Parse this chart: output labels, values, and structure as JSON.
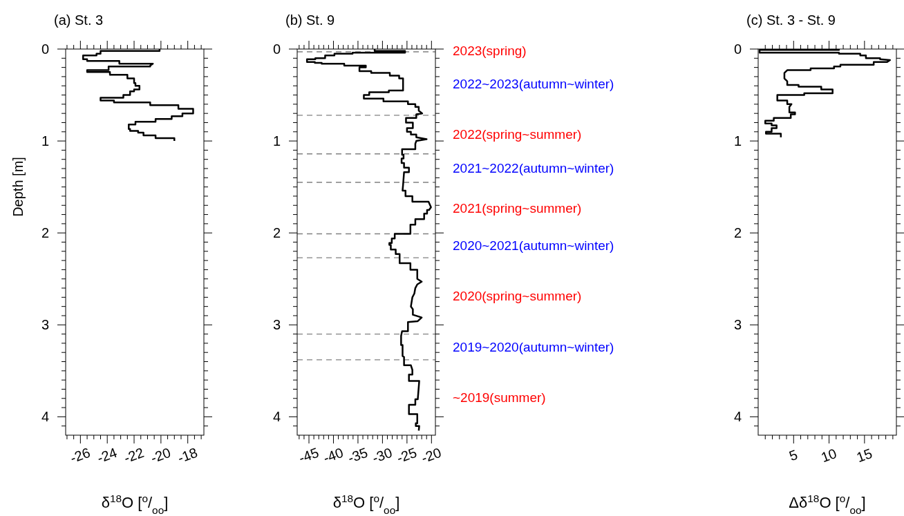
{
  "chart_data": [
    {
      "type": "line",
      "title": "(a) St. 3",
      "xlabel": "δ$^{18}$O [$^{o}$/$_{oo}$]",
      "ylabel": "Depth [m]",
      "xlim": [
        -27.1,
        -16.8
      ],
      "ylim": [
        4.2,
        0
      ],
      "xticks": [
        {
          "value": -27,
          "label": null
        },
        {
          "value": -26.5,
          "label": null
        },
        -26,
        {
          "value": -25.5,
          "label": null
        },
        {
          "value": -25,
          "label": null
        },
        {
          "value": -24.5,
          "label": null
        },
        -24,
        {
          "value": -23.5,
          "label": null
        },
        {
          "value": -23,
          "label": null
        },
        {
          "value": -22.5,
          "label": null
        },
        -22,
        {
          "value": -21.5,
          "label": null
        },
        {
          "value": -21,
          "label": null
        },
        {
          "value": -20.5,
          "label": null
        },
        -20,
        {
          "value": -19.5,
          "label": null
        },
        {
          "value": -19,
          "label": null
        },
        {
          "value": -18.5,
          "label": null
        },
        -18,
        {
          "value": -17.5,
          "label": null
        },
        {
          "value": -17,
          "label": null
        }
      ],
      "yticks": [
        0,
        {
          "value": 0.1,
          "label": null
        },
        {
          "value": 0.2,
          "label": null
        },
        {
          "value": 0.3,
          "label": null
        },
        {
          "value": 0.4,
          "label": null
        },
        {
          "value": 0.5,
          "label": null
        },
        {
          "value": 0.6,
          "label": null
        },
        {
          "value": 0.7,
          "label": null
        },
        {
          "value": 0.8,
          "label": null
        },
        {
          "value": 0.9,
          "label": null
        },
        1,
        {
          "value": 1.1,
          "label": null
        },
        {
          "value": 1.2,
          "label": null
        },
        {
          "value": 1.3,
          "label": null
        },
        {
          "value": 1.4,
          "label": null
        },
        {
          "value": 1.5,
          "label": null
        },
        {
          "value": 1.6,
          "label": null
        },
        {
          "value": 1.7,
          "label": null
        },
        {
          "value": 1.8,
          "label": null
        },
        {
          "value": 1.9,
          "label": null
        },
        2,
        {
          "value": 2.1,
          "label": null
        },
        {
          "value": 2.2,
          "label": null
        },
        {
          "value": 2.3,
          "label": null
        },
        {
          "value": 2.4,
          "label": null
        },
        {
          "value": 2.5,
          "label": null
        },
        {
          "value": 2.6,
          "label": null
        },
        {
          "value": 2.7,
          "label": null
        },
        {
          "value": 2.8,
          "label": null
        },
        {
          "value": 2.9,
          "label": null
        },
        3,
        {
          "value": 3.1,
          "label": null
        },
        {
          "value": 3.2,
          "label": null
        },
        {
          "value": 3.3,
          "label": null
        },
        {
          "value": 3.4,
          "label": null
        },
        {
          "value": 3.5,
          "label": null
        },
        {
          "value": 3.6,
          "label": null
        },
        {
          "value": 3.7,
          "label": null
        },
        {
          "value": 3.8,
          "label": null
        },
        {
          "value": 3.9,
          "label": null
        },
        4,
        {
          "value": 4.1,
          "label": null
        }
      ],
      "series": [
        {
          "color": "#000000",
          "x": [
            -20.1,
            -20.1,
            -24.5,
            -24.5,
            -24.8,
            -24.8,
            -25.8,
            -25.8,
            -25.5,
            -25.5,
            -23.1,
            -23.1,
            -20.6,
            -20.8,
            -20.8,
            -23.9,
            -23.9,
            -25.5,
            -25.5,
            -23.8,
            -23.8,
            -22.5,
            -22.5,
            -22.0,
            -22.0,
            -21.9,
            -21.9,
            -21.6,
            -21.6,
            -22.0,
            -22.0,
            -22.3,
            -22.3,
            -22.8,
            -22.8,
            -24.5,
            -24.5,
            -23.5,
            -23.5,
            -20.8,
            -20.8,
            -18.7,
            -18.7,
            -17.6,
            -17.6,
            -18.4,
            -18.4,
            -19.2,
            -19.2,
            -20.4,
            -20.4,
            -21.9,
            -21.9,
            -22.4,
            -22.4,
            -22.3,
            -22.3,
            -21.7,
            -21.7,
            -21.3,
            -21.3,
            -20.4,
            -20.4,
            -19.0,
            -19.0
          ],
          "values": [
            0,
            0.02,
            0.02,
            0.05,
            0.05,
            0.07,
            0.07,
            0.11,
            0.11,
            0.13,
            0.13,
            0.16,
            0.16,
            0.18,
            0.19,
            0.19,
            0.23,
            0.23,
            0.25,
            0.25,
            0.28,
            0.28,
            0.32,
            0.32,
            0.37,
            0.37,
            0.4,
            0.4,
            0.44,
            0.44,
            0.46,
            0.46,
            0.5,
            0.5,
            0.53,
            0.53,
            0.56,
            0.56,
            0.58,
            0.58,
            0.61,
            0.61,
            0.65,
            0.65,
            0.7,
            0.7,
            0.73,
            0.73,
            0.76,
            0.76,
            0.79,
            0.79,
            0.82,
            0.82,
            0.87,
            0.87,
            0.89,
            0.89,
            0.91,
            0.91,
            0.94,
            0.94,
            0.97,
            0.97,
            1.0
          ]
        }
      ]
    },
    {
      "type": "line",
      "title": "(b) St. 9",
      "xlabel": "δ$^{18}$O [$^{o}$/$_{oo}$]",
      "xlim": [
        -47.4,
        -19.2
      ],
      "ylim": [
        4.2,
        0
      ],
      "xticks": [
        {
          "value": -47,
          "label": null
        },
        {
          "value": -46,
          "label": null
        },
        -45,
        {
          "value": -44,
          "label": null
        },
        {
          "value": -43,
          "label": null
        },
        {
          "value": -42,
          "label": null
        },
        {
          "value": -41,
          "label": null
        },
        -40,
        {
          "value": -39,
          "label": null
        },
        {
          "value": -38,
          "label": null
        },
        {
          "value": -37,
          "label": null
        },
        {
          "value": -36,
          "label": null
        },
        -35,
        {
          "value": -34,
          "label": null
        },
        {
          "value": -33,
          "label": null
        },
        {
          "value": -32,
          "label": null
        },
        {
          "value": -31,
          "label": null
        },
        -30,
        {
          "value": -29,
          "label": null
        },
        {
          "value": -28,
          "label": null
        },
        {
          "value": -27,
          "label": null
        },
        {
          "value": -26,
          "label": null
        },
        -25,
        {
          "value": -24,
          "label": null
        },
        {
          "value": -23,
          "label": null
        },
        {
          "value": -22,
          "label": null
        },
        {
          "value": -21,
          "label": null
        },
        -20
      ],
      "yticks": [
        0,
        {
          "value": 0.1,
          "label": null
        },
        {
          "value": 0.2,
          "label": null
        },
        {
          "value": 0.3,
          "label": null
        },
        {
          "value": 0.4,
          "label": null
        },
        {
          "value": 0.5,
          "label": null
        },
        {
          "value": 0.6,
          "label": null
        },
        {
          "value": 0.7,
          "label": null
        },
        {
          "value": 0.8,
          "label": null
        },
        {
          "value": 0.9,
          "label": null
        },
        1,
        {
          "value": 1.1,
          "label": null
        },
        {
          "value": 1.2,
          "label": null
        },
        {
          "value": 1.3,
          "label": null
        },
        {
          "value": 1.4,
          "label": null
        },
        {
          "value": 1.5,
          "label": null
        },
        {
          "value": 1.6,
          "label": null
        },
        {
          "value": 1.7,
          "label": null
        },
        {
          "value": 1.8,
          "label": null
        },
        {
          "value": 1.9,
          "label": null
        },
        2,
        {
          "value": 2.1,
          "label": null
        },
        {
          "value": 2.2,
          "label": null
        },
        {
          "value": 2.3,
          "label": null
        },
        {
          "value": 2.4,
          "label": null
        },
        {
          "value": 2.5,
          "label": null
        },
        {
          "value": 2.6,
          "label": null
        },
        {
          "value": 2.7,
          "label": null
        },
        {
          "value": 2.8,
          "label": null
        },
        {
          "value": 2.9,
          "label": null
        },
        3,
        {
          "value": 3.1,
          "label": null
        },
        {
          "value": 3.2,
          "label": null
        },
        {
          "value": 3.3,
          "label": null
        },
        {
          "value": 3.4,
          "label": null
        },
        {
          "value": 3.5,
          "label": null
        },
        {
          "value": 3.6,
          "label": null
        },
        {
          "value": 3.7,
          "label": null
        },
        {
          "value": 3.8,
          "label": null
        },
        {
          "value": 3.9,
          "label": null
        },
        4,
        {
          "value": 4.1,
          "label": null
        }
      ],
      "series": [
        {
          "color": "#000000",
          "x": [
            -31.6,
            -31.6,
            -25.4,
            -25.4,
            -36.1,
            -36.1,
            -39.8,
            -39.8,
            -41.7,
            -41.7,
            -43.7,
            -43.7,
            -45.4,
            -45.4,
            -43.8,
            -43.8,
            -42.4,
            -42.4,
            -37.8,
            -37.8,
            -33.4,
            -33.4,
            -34.7,
            -34.7,
            -32.3,
            -32.3,
            -28.5,
            -28.5,
            -26.6,
            -26.6,
            -25.8,
            -25.8,
            -28.7,
            -28.7,
            -32.7,
            -32.7,
            -33.8,
            -33.8,
            -29.8,
            -29.8,
            -24.8,
            -24.8,
            -23.3,
            -23.3,
            -22.6,
            -22.6,
            -21.9,
            -23.1,
            -23.1,
            -25.2,
            -25.2,
            -23.8,
            -23.8,
            -25.0,
            -25.0,
            -24.2,
            -24.2,
            -23.1,
            -23.1,
            -21.0,
            -23.1,
            -23.3,
            -23.3,
            -26.0,
            -26.0,
            -25.7,
            -25.7,
            -26.1,
            -26.1,
            -25.6,
            -25.6,
            -24.6,
            -24.6,
            -25.6,
            -25.8,
            -25.9,
            -25.3,
            -25.3,
            -23.9,
            -23.9,
            -20.6,
            -20.1,
            -20.5,
            -20.9,
            -20.9,
            -21.5,
            -21.5,
            -23.3,
            -23.3,
            -24.3,
            -24.3,
            -27.5,
            -27.5,
            -28.1,
            -28.1,
            -28.6,
            -28.6,
            -28.3,
            -28.3,
            -27.3,
            -27.3,
            -26.5,
            -26.5,
            -24.3,
            -24.3,
            -22.9,
            -22.9,
            -22.0,
            -22.9,
            -23.3,
            -23.5,
            -23.9,
            -24.2,
            -23.8,
            -23.8,
            -22.0,
            -22.8,
            -24.8,
            -24.8,
            -26.0,
            -26.2,
            -26.2,
            -25.9,
            -25.9,
            -25.6,
            -25.6,
            -24.2,
            -23.9,
            -23.9,
            -24.6,
            -24.6,
            -22.5,
            -22.8,
            -23.3,
            -23.3,
            -24.6,
            -24.6,
            -22.9,
            -22.9,
            -23.2,
            -23.2,
            -22.5,
            -22.6
          ],
          "values": [
            0,
            0.02,
            0.02,
            0.04,
            0.04,
            0.05,
            0.05,
            0.07,
            0.07,
            0.1,
            0.1,
            0.11,
            0.11,
            0.14,
            0.14,
            0.15,
            0.15,
            0.16,
            0.16,
            0.18,
            0.18,
            0.2,
            0.2,
            0.24,
            0.24,
            0.26,
            0.26,
            0.29,
            0.29,
            0.32,
            0.32,
            0.45,
            0.45,
            0.47,
            0.47,
            0.5,
            0.5,
            0.54,
            0.54,
            0.57,
            0.57,
            0.6,
            0.6,
            0.63,
            0.63,
            0.67,
            0.7,
            0.71,
            0.75,
            0.75,
            0.8,
            0.8,
            0.86,
            0.86,
            0.9,
            0.9,
            0.93,
            0.93,
            0.96,
            0.98,
            1.0,
            1.03,
            1.09,
            1.09,
            1.15,
            1.15,
            1.19,
            1.19,
            1.24,
            1.24,
            1.29,
            1.29,
            1.34,
            1.34,
            1.48,
            1.54,
            1.54,
            1.6,
            1.6,
            1.66,
            1.66,
            1.72,
            1.75,
            1.75,
            1.79,
            1.79,
            1.85,
            1.85,
            1.91,
            1.91,
            2.01,
            2.01,
            2.06,
            2.06,
            2.11,
            2.11,
            2.13,
            2.13,
            2.18,
            2.18,
            2.23,
            2.23,
            2.33,
            2.33,
            2.4,
            2.4,
            2.5,
            2.53,
            2.56,
            2.6,
            2.66,
            2.7,
            2.8,
            2.83,
            2.89,
            2.92,
            2.96,
            2.97,
            3.07,
            3.07,
            3.12,
            3.22,
            3.22,
            3.34,
            3.35,
            3.44,
            3.44,
            3.49,
            3.54,
            3.54,
            3.61,
            3.61,
            3.81,
            3.81,
            3.87,
            3.87,
            3.97,
            3.97,
            4.07,
            4.07,
            4.1,
            4.1,
            4.15
          ]
        }
      ],
      "ref_lines": [
        {
          "axis": "y",
          "value": 0.03,
          "color": "#808080",
          "line_style": "dashed"
        },
        {
          "axis": "y",
          "value": 0.72,
          "color": "#808080",
          "line_style": "dashed"
        },
        {
          "axis": "y",
          "value": 1.14,
          "color": "#808080",
          "line_style": "dashed"
        },
        {
          "axis": "y",
          "value": 1.45,
          "color": "#808080",
          "line_style": "dashed"
        },
        {
          "axis": "y",
          "value": 2.01,
          "color": "#808080",
          "line_style": "dashed"
        },
        {
          "axis": "y",
          "value": 2.27,
          "color": "#808080",
          "line_style": "dashed"
        },
        {
          "axis": "y",
          "value": 3.1,
          "color": "#808080",
          "line_style": "dashed"
        },
        {
          "axis": "y",
          "value": 3.38,
          "color": "#808080",
          "line_style": "dashed"
        }
      ],
      "annotations": [
        "2023(spring)",
        "2022~2023(autumn~winter)",
        "2022(spring~summer)",
        "2021~2022(autumn~winter)",
        "2021(spring~summer)",
        "2020~2021(autumn~winter)",
        "2020(spring~summer)",
        "2019~2020(autumn~winter)",
        "~2019(summer)"
      ]
    },
    {
      "type": "line",
      "title": "(c) St. 3 - St. 9",
      "xlabel": "Δδ$^{18}$O [$^{o}$/$_{oo}$]",
      "xlim": [
        0,
        19.5
      ],
      "ylim": [
        4.2,
        0
      ],
      "xticks": [
        {
          "value": 1,
          "label": null
        },
        {
          "value": 2,
          "label": null
        },
        {
          "value": 3,
          "label": null
        },
        {
          "value": 4,
          "label": null
        },
        5,
        {
          "value": 6,
          "label": null
        },
        {
          "value": 7,
          "label": null
        },
        {
          "value": 8,
          "label": null
        },
        {
          "value": 9,
          "label": null
        },
        10,
        {
          "value": 11,
          "label": null
        },
        {
          "value": 12,
          "label": null
        },
        {
          "value": 13,
          "label": null
        },
        {
          "value": 14,
          "label": null
        },
        15,
        {
          "value": 16,
          "label": null
        },
        {
          "value": 17,
          "label": null
        },
        {
          "value": 18,
          "label": null
        },
        {
          "value": 19,
          "label": null
        }
      ],
      "yticks": [
        0,
        {
          "value": 0.1,
          "label": null
        },
        {
          "value": 0.2,
          "label": null
        },
        {
          "value": 0.3,
          "label": null
        },
        {
          "value": 0.4,
          "label": null
        },
        {
          "value": 0.5,
          "label": null
        },
        {
          "value": 0.6,
          "label": null
        },
        {
          "value": 0.7,
          "label": null
        },
        {
          "value": 0.8,
          "label": null
        },
        {
          "value": 0.9,
          "label": null
        },
        1,
        {
          "value": 1.1,
          "label": null
        },
        {
          "value": 1.2,
          "label": null
        },
        {
          "value": 1.3,
          "label": null
        },
        {
          "value": 1.4,
          "label": null
        },
        {
          "value": 1.5,
          "label": null
        },
        {
          "value": 1.6,
          "label": null
        },
        {
          "value": 1.7,
          "label": null
        },
        {
          "value": 1.8,
          "label": null
        },
        {
          "value": 1.9,
          "label": null
        },
        2,
        {
          "value": 2.1,
          "label": null
        },
        {
          "value": 2.2,
          "label": null
        },
        {
          "value": 2.3,
          "label": null
        },
        {
          "value": 2.4,
          "label": null
        },
        {
          "value": 2.5,
          "label": null
        },
        {
          "value": 2.6,
          "label": null
        },
        {
          "value": 2.7,
          "label": null
        },
        {
          "value": 2.8,
          "label": null
        },
        {
          "value": 2.9,
          "label": null
        },
        3,
        {
          "value": 3.1,
          "label": null
        },
        {
          "value": 3.2,
          "label": null
        },
        {
          "value": 3.3,
          "label": null
        },
        {
          "value": 3.4,
          "label": null
        },
        {
          "value": 3.5,
          "label": null
        },
        {
          "value": 3.6,
          "label": null
        },
        {
          "value": 3.7,
          "label": null
        },
        {
          "value": 3.8,
          "label": null
        },
        {
          "value": 3.9,
          "label": null
        },
        4,
        {
          "value": 4.1,
          "label": null
        }
      ],
      "series": [
        {
          "color": "#000000",
          "x": [
            11.4,
            11.4,
            0.2,
            0.2,
            11.4,
            11.4,
            14.4,
            14.4,
            15.2,
            15.2,
            17.2,
            17.2,
            18.6,
            18.2,
            16.3,
            16.3,
            11.6,
            11.6,
            10.7,
            10.7,
            7.4,
            7.4,
            4.1,
            3.7,
            3.7,
            4.1,
            4.1,
            5.7,
            5.7,
            8.9,
            8.9,
            10.5,
            10.5,
            6.5,
            6.5,
            2.7,
            2.7,
            4.1,
            4.1,
            4.7,
            4.4,
            4.4,
            5.2,
            5.2,
            4.6,
            4.6,
            2.2,
            2.2,
            1.0,
            1.0,
            1.9,
            1.9,
            2.6,
            2.6,
            1.9,
            1.9,
            1.1,
            1.1,
            3.2,
            3.2
          ],
          "values": [
            0,
            0.01,
            0.01,
            0.04,
            0.04,
            0.05,
            0.05,
            0.07,
            0.07,
            0.1,
            0.1,
            0.11,
            0.12,
            0.14,
            0.14,
            0.17,
            0.17,
            0.19,
            0.19,
            0.21,
            0.21,
            0.23,
            0.23,
            0.26,
            0.32,
            0.35,
            0.39,
            0.39,
            0.41,
            0.41,
            0.44,
            0.44,
            0.48,
            0.48,
            0.5,
            0.5,
            0.56,
            0.56,
            0.6,
            0.6,
            0.63,
            0.69,
            0.69,
            0.71,
            0.71,
            0.75,
            0.75,
            0.78,
            0.78,
            0.81,
            0.81,
            0.83,
            0.83,
            0.86,
            0.86,
            0.9,
            0.9,
            0.92,
            0.92,
            0.96
          ]
        }
      ]
    }
  ]
}
